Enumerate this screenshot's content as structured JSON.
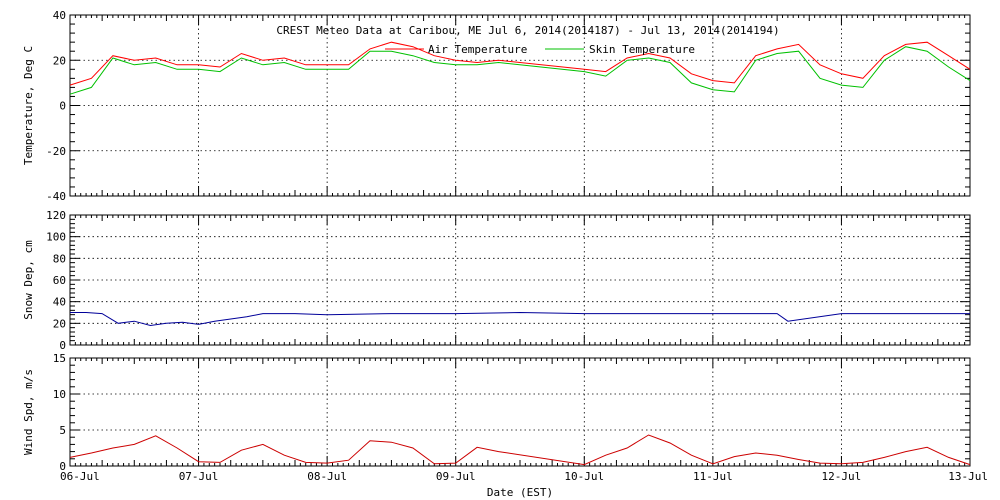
{
  "chart_data": [
    {
      "type": "line",
      "title": "CREST Meteo Data at Caribou, ME   Jul  6, 2014(2014187) - Jul 13, 2014(2014194)",
      "ylabel": "Temperature, Deg C",
      "ylim": [
        -40,
        40
      ],
      "yticks": [
        -40,
        -20,
        0,
        20,
        40
      ],
      "xlim": [
        "06-Jul",
        "13-Jul"
      ],
      "grid": true,
      "legend_position": "top-right",
      "series": [
        {
          "name": "Air Temperature",
          "color": "#ff0000",
          "x": [
            "06-Jul 00:00",
            "06-Jul 04:00",
            "06-Jul 08:00",
            "06-Jul 12:00",
            "06-Jul 16:00",
            "06-Jul 20:00",
            "07-Jul 00:00",
            "07-Jul 04:00",
            "07-Jul 08:00",
            "07-Jul 12:00",
            "07-Jul 16:00",
            "07-Jul 20:00",
            "08-Jul 00:00",
            "08-Jul 04:00",
            "08-Jul 08:00",
            "08-Jul 12:00",
            "08-Jul 16:00",
            "08-Jul 20:00",
            "09-Jul 00:00",
            "09-Jul 04:00",
            "09-Jul 08:00",
            "10-Jul 00:00",
            "10-Jul 04:00",
            "10-Jul 08:00",
            "10-Jul 12:00",
            "10-Jul 16:00",
            "10-Jul 20:00",
            "11-Jul 00:00",
            "11-Jul 04:00",
            "11-Jul 08:00",
            "11-Jul 12:00",
            "11-Jul 16:00",
            "11-Jul 20:00",
            "12-Jul 00:00",
            "12-Jul 04:00",
            "12-Jul 08:00",
            "12-Jul 12:00",
            "12-Jul 16:00",
            "12-Jul 20:00",
            "13-Jul 00:00"
          ],
          "values": [
            9,
            12,
            22,
            20,
            21,
            18,
            18,
            17,
            23,
            20,
            21,
            18,
            18,
            18,
            25,
            28,
            26,
            22,
            20,
            19,
            20,
            16,
            15,
            21,
            23,
            21,
            14,
            11,
            10,
            22,
            25,
            27,
            18,
            14,
            12,
            22,
            27,
            28,
            22,
            16
          ]
        },
        {
          "name": "Skin Temperature",
          "color": "#00c000",
          "x": [
            "06-Jul 00:00",
            "06-Jul 04:00",
            "06-Jul 08:00",
            "06-Jul 12:00",
            "06-Jul 16:00",
            "06-Jul 20:00",
            "07-Jul 00:00",
            "07-Jul 04:00",
            "07-Jul 08:00",
            "07-Jul 12:00",
            "07-Jul 16:00",
            "07-Jul 20:00",
            "08-Jul 00:00",
            "08-Jul 04:00",
            "08-Jul 08:00",
            "08-Jul 12:00",
            "08-Jul 16:00",
            "08-Jul 20:00",
            "09-Jul 00:00",
            "09-Jul 04:00",
            "09-Jul 08:00",
            "10-Jul 00:00",
            "10-Jul 04:00",
            "10-Jul 08:00",
            "10-Jul 12:00",
            "10-Jul 16:00",
            "10-Jul 20:00",
            "11-Jul 00:00",
            "11-Jul 04:00",
            "11-Jul 08:00",
            "11-Jul 12:00",
            "11-Jul 16:00",
            "11-Jul 20:00",
            "12-Jul 00:00",
            "12-Jul 04:00",
            "12-Jul 08:00",
            "12-Jul 12:00",
            "12-Jul 16:00",
            "12-Jul 20:00",
            "13-Jul 00:00"
          ],
          "values": [
            5,
            8,
            21,
            18,
            19,
            16,
            16,
            15,
            21,
            18,
            19,
            16,
            16,
            16,
            24,
            24,
            22,
            19,
            18,
            18,
            19,
            15,
            13,
            20,
            21,
            19,
            10,
            7,
            6,
            20,
            23,
            24,
            12,
            9,
            8,
            20,
            26,
            24,
            17,
            11
          ]
        }
      ]
    },
    {
      "type": "line",
      "ylabel": "Snow Dep, cm",
      "ylim": [
        0,
        120
      ],
      "yticks": [
        0,
        20,
        40,
        60,
        80,
        100,
        120
      ],
      "xlim": [
        "06-Jul",
        "13-Jul"
      ],
      "grid": true,
      "series": [
        {
          "color": "#000099",
          "x": [
            "06-Jul 00:00",
            "06-Jul 03:00",
            "06-Jul 06:00",
            "06-Jul 09:00",
            "06-Jul 12:00",
            "06-Jul 15:00",
            "06-Jul 18:00",
            "06-Jul 21:00",
            "07-Jul 00:00",
            "07-Jul 03:00",
            "07-Jul 06:00",
            "07-Jul 09:00",
            "07-Jul 12:00",
            "07-Jul 18:00",
            "08-Jul 00:00",
            "08-Jul 12:00",
            "09-Jul 00:00",
            "09-Jul 12:00",
            "10-Jul 00:00",
            "10-Jul 12:00",
            "11-Jul 00:00",
            "11-Jul 12:00",
            "11-Jul 14:00",
            "12-Jul 00:00",
            "12-Jul 12:00",
            "13-Jul 00:00"
          ],
          "values": [
            30,
            30,
            29,
            20,
            22,
            18,
            20,
            21,
            19,
            22,
            24,
            26,
            29,
            29,
            28,
            29,
            29,
            30,
            29,
            29,
            29,
            29,
            22,
            29,
            29,
            29
          ]
        }
      ]
    },
    {
      "type": "line",
      "ylabel": "Wind Spd, m/s",
      "xlabel": "Date (EST)",
      "ylim": [
        0,
        15
      ],
      "yticks": [
        0,
        5,
        10,
        15
      ],
      "xlim": [
        "06-Jul",
        "13-Jul"
      ],
      "xticklabels": [
        "06-Jul",
        "07-Jul",
        "08-Jul",
        "09-Jul",
        "10-Jul",
        "11-Jul",
        "12-Jul",
        "13-Jul"
      ],
      "grid": true,
      "series": [
        {
          "color": "#cc0000",
          "x": [
            "06-Jul 00:00",
            "06-Jul 04:00",
            "06-Jul 08:00",
            "06-Jul 12:00",
            "06-Jul 16:00",
            "06-Jul 20:00",
            "07-Jul 00:00",
            "07-Jul 04:00",
            "07-Jul 08:00",
            "07-Jul 12:00",
            "07-Jul 16:00",
            "07-Jul 20:00",
            "08-Jul 00:00",
            "08-Jul 04:00",
            "08-Jul 08:00",
            "08-Jul 12:00",
            "08-Jul 16:00",
            "08-Jul 20:00",
            "09-Jul 00:00",
            "09-Jul 04:00",
            "09-Jul 08:00",
            "10-Jul 00:00",
            "10-Jul 04:00",
            "10-Jul 08:00",
            "10-Jul 12:00",
            "10-Jul 16:00",
            "10-Jul 20:00",
            "11-Jul 00:00",
            "11-Jul 04:00",
            "11-Jul 08:00",
            "11-Jul 12:00",
            "11-Jul 16:00",
            "11-Jul 20:00",
            "12-Jul 00:00",
            "12-Jul 04:00",
            "12-Jul 08:00",
            "12-Jul 12:00",
            "12-Jul 16:00",
            "12-Jul 20:00",
            "13-Jul 00:00"
          ],
          "values": [
            1.2,
            1.8,
            2.5,
            3.0,
            4.2,
            2.5,
            0.6,
            0.5,
            2.2,
            3.0,
            1.5,
            0.5,
            0.4,
            0.8,
            3.5,
            3.3,
            2.5,
            0.3,
            0.4,
            2.6,
            2.0,
            0.2,
            1.5,
            2.5,
            4.3,
            3.2,
            1.5,
            0.3,
            1.3,
            1.8,
            1.5,
            0.9,
            0.4,
            0.3,
            0.5,
            1.2,
            2.0,
            2.6,
            1.2,
            0.2
          ]
        }
      ]
    }
  ]
}
